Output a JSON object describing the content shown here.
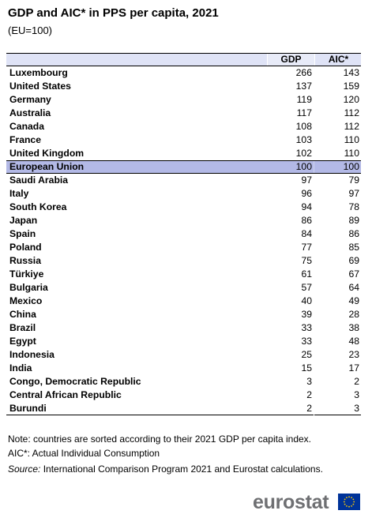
{
  "title": "GDP and AIC* in PPS per capita, 2021",
  "subtitle": "(EU=100)",
  "columns": [
    "GDP",
    "AIC*"
  ],
  "rows": [
    {
      "country": "Luxembourg",
      "gdp": "266",
      "aic": "143"
    },
    {
      "country": "United States",
      "gdp": "137",
      "aic": "159"
    },
    {
      "country": "Germany",
      "gdp": "119",
      "aic": "120"
    },
    {
      "country": "Australia",
      "gdp": "117",
      "aic": "112"
    },
    {
      "country": "Canada",
      "gdp": "108",
      "aic": "112"
    },
    {
      "country": "France",
      "gdp": "103",
      "aic": "110"
    },
    {
      "country": "United Kingdom",
      "gdp": "102",
      "aic": "110"
    },
    {
      "country": "European Union",
      "gdp": "100",
      "aic": "100"
    },
    {
      "country": "Saudi Arabia",
      "gdp": "97",
      "aic": "79"
    },
    {
      "country": "Italy",
      "gdp": "96",
      "aic": "97"
    },
    {
      "country": "South Korea",
      "gdp": "94",
      "aic": "78"
    },
    {
      "country": "Japan",
      "gdp": "86",
      "aic": "89"
    },
    {
      "country": "Spain",
      "gdp": "84",
      "aic": "86"
    },
    {
      "country": "Poland",
      "gdp": "77",
      "aic": "85"
    },
    {
      "country": "Russia",
      "gdp": "75",
      "aic": "69"
    },
    {
      "country": "Türkiye",
      "gdp": "61",
      "aic": "67"
    },
    {
      "country": "Bulgaria",
      "gdp": "57",
      "aic": "64"
    },
    {
      "country": "Mexico",
      "gdp": "40",
      "aic": "49"
    },
    {
      "country": "China",
      "gdp": "39",
      "aic": "28"
    },
    {
      "country": "Brazil",
      "gdp": "33",
      "aic": "38"
    },
    {
      "country": "Egypt",
      "gdp": "33",
      "aic": "48"
    },
    {
      "country": "Indonesia",
      "gdp": "25",
      "aic": "23"
    },
    {
      "country": "India",
      "gdp": "15",
      "aic": "17"
    },
    {
      "country": "Congo, Democratic Republic",
      "gdp": "3",
      "aic": "2"
    },
    {
      "country": "Central African Republic",
      "gdp": "2",
      "aic": "3"
    },
    {
      "country": "Burundi",
      "gdp": "2",
      "aic": "3"
    }
  ],
  "highlight_country": "European Union",
  "notes": {
    "line1": "Note: countries are sorted according to their 2021 GDP per capita index.",
    "line2": "AIC*: Actual Individual Consumption",
    "source_label": "Source:",
    "source_text": "International Comparison Program 2021 and Eurostat calculations."
  },
  "logo": {
    "text": "eurostat",
    "icon": "eu-flag-icon"
  },
  "colors": {
    "header_bg": "#dfe3f6",
    "highlight_bg": "#b3b9e6",
    "logo_text": "#6e6f72",
    "flag_blue": "#003399",
    "flag_stars": "#ffcc00"
  }
}
